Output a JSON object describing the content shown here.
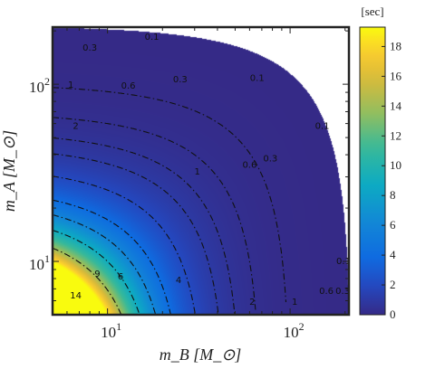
{
  "chart_data": {
    "type": "heatmap",
    "xlabel": "m_B [M_⊙]",
    "ylabel": "m_A [M_⊙]",
    "x_scale": "log",
    "y_scale": "log",
    "xlim": [
      5,
      210
    ],
    "ylim": [
      5,
      210
    ],
    "x_ticks": [
      {
        "value": 10,
        "base": "10",
        "exp": "1"
      },
      {
        "value": 100,
        "base": "10",
        "exp": "2"
      }
    ],
    "y_ticks": [
      {
        "value": 10,
        "base": "10",
        "exp": "1"
      },
      {
        "value": 100,
        "base": "10",
        "exp": "2"
      }
    ],
    "colorbar": {
      "unit_label": "[sec]",
      "min": 0,
      "max": 19.3,
      "ticks": [
        "0",
        "2",
        "4",
        "6",
        "8",
        "10",
        "12",
        "14",
        "16",
        "18"
      ],
      "colormap": "parula"
    },
    "valid_region": "m_A + m_B <= 215 (approx; blank beyond)",
    "contour_levels": [
      "0.1",
      "0.3",
      "0.6",
      "1",
      "2",
      "4",
      "6",
      "9",
      "14"
    ],
    "contour_labels": [
      {
        "text": "0.1",
        "x": 17.5,
        "y": 185
      },
      {
        "text": "0.1",
        "x": 66,
        "y": 108
      },
      {
        "text": "0.1",
        "x": 150,
        "y": 58
      },
      {
        "text": "0.1",
        "x": 196,
        "y": 10
      },
      {
        "text": "0.3",
        "x": 8,
        "y": 160
      },
      {
        "text": "0.3",
        "x": 25,
        "y": 106
      },
      {
        "text": "0.3",
        "x": 78,
        "y": 38
      },
      {
        "text": "0.3",
        "x": 194,
        "y": 6.8
      },
      {
        "text": "0.6",
        "x": 13,
        "y": 98
      },
      {
        "text": "0.6",
        "x": 60,
        "y": 35
      },
      {
        "text": "0.6",
        "x": 158,
        "y": 6.8
      },
      {
        "text": "1",
        "x": 6.3,
        "y": 99
      },
      {
        "text": "1",
        "x": 31,
        "y": 32
      },
      {
        "text": "1",
        "x": 106,
        "y": 5.9
      },
      {
        "text": "2",
        "x": 6.7,
        "y": 58
      },
      {
        "text": "2",
        "x": 62,
        "y": 5.9
      },
      {
        "text": "4",
        "x": 24.5,
        "y": 7.8
      },
      {
        "text": "6",
        "x": 11.8,
        "y": 8.2
      },
      {
        "text": "9",
        "x": 8.8,
        "y": 8.5
      },
      {
        "text": "14",
        "x": 6.7,
        "y": 6.4
      }
    ]
  }
}
